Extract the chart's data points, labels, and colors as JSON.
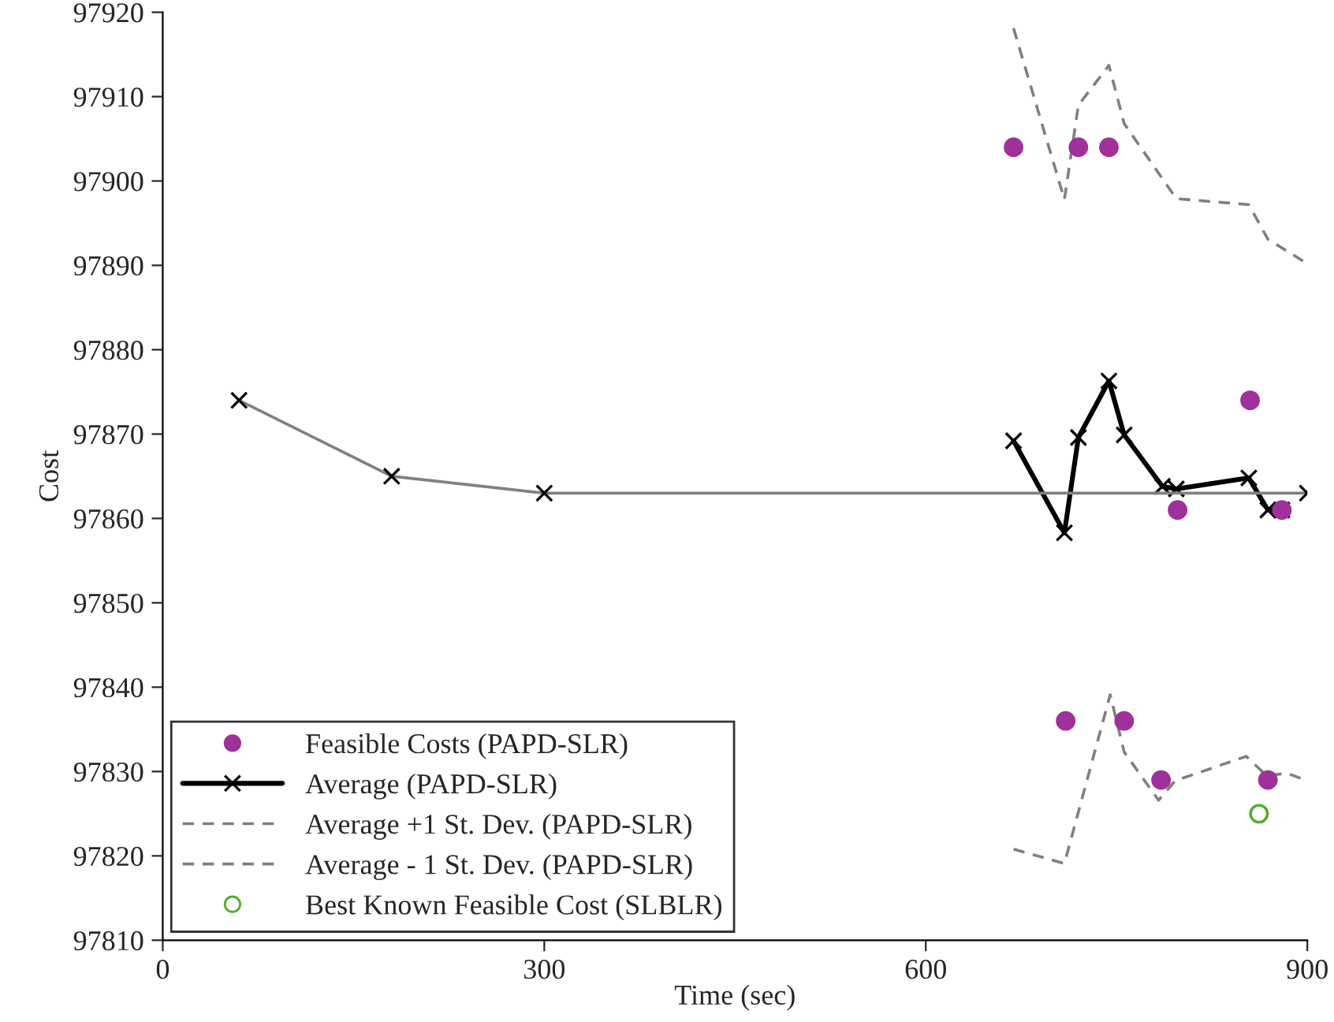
{
  "chart_data": {
    "type": "line",
    "xlabel": "Time (sec)",
    "ylabel": "Cost",
    "xlim": [
      0,
      900
    ],
    "xticks": [
      0,
      300,
      600,
      900
    ],
    "ylim": [
      97810,
      97920
    ],
    "yticks": [
      97810,
      97820,
      97830,
      97840,
      97850,
      97860,
      97870,
      97880,
      97890,
      97900,
      97910,
      97920
    ],
    "grid": false,
    "legend": "bottom left",
    "series": [
      {
        "name": "Feasible Costs (PAPD-SLR)",
        "type": "scatter",
        "marker": "circle",
        "color": "#a0309a",
        "x": [
          669,
          720,
          744,
          855,
          798,
          880,
          710,
          756,
          785,
          869
        ],
        "values": [
          97904,
          97904,
          97904,
          97874,
          97861,
          97861,
          97836,
          97836,
          97829,
          97829
        ]
      },
      {
        "name": "Average (PAPD-SLR)",
        "type": "line",
        "marker": "cross",
        "line_style": "solid",
        "color": "#000000",
        "x": [
          669,
          709,
          720,
          744,
          756,
          786,
          797,
          854,
          869,
          880
        ],
        "values": [
          97869.2,
          97858.3,
          97869.6,
          97876.3,
          97869.9,
          97863.8,
          97863.5,
          97864.8,
          97861.0,
          97861.0
        ]
      },
      {
        "name": "Average +1 St. Dev. (PAPD-SLR)",
        "type": "line",
        "marker": "none",
        "line_style": "dashed",
        "color": "#808080",
        "x": [
          669,
          709,
          720,
          744,
          756,
          797,
          854,
          869,
          900
        ],
        "values": [
          97918.1,
          97897.8,
          97909.0,
          97913.7,
          97906.8,
          97897.9,
          97897.2,
          97893.1,
          97890.2
        ]
      },
      {
        "name": "Average - 1 St. Dev. (PAPD-SLR)",
        "type": "line",
        "marker": "none",
        "line_style": "dashed",
        "color": "#808080",
        "x": [
          669,
          709,
          745,
          756,
          783,
          796,
          852,
          868,
          884,
          900
        ],
        "values": [
          97820.8,
          97819.1,
          97839.1,
          97832.3,
          97826.6,
          97828.9,
          97831.8,
          97829.5,
          97829.8,
          97828.9
        ]
      },
      {
        "marker": "cross",
        "line_style": "solid",
        "color": "#808080",
        "x": [
          60,
          180,
          300,
          900
        ],
        "values": [
          97874,
          97865,
          97863,
          97863
        ]
      },
      {
        "name": "Best Known Feasible Cost (SLBLR)",
        "type": "scatter",
        "marker": "open circle",
        "color": "#4caf2a",
        "x": [
          862
        ],
        "values": [
          97825
        ]
      }
    ]
  }
}
